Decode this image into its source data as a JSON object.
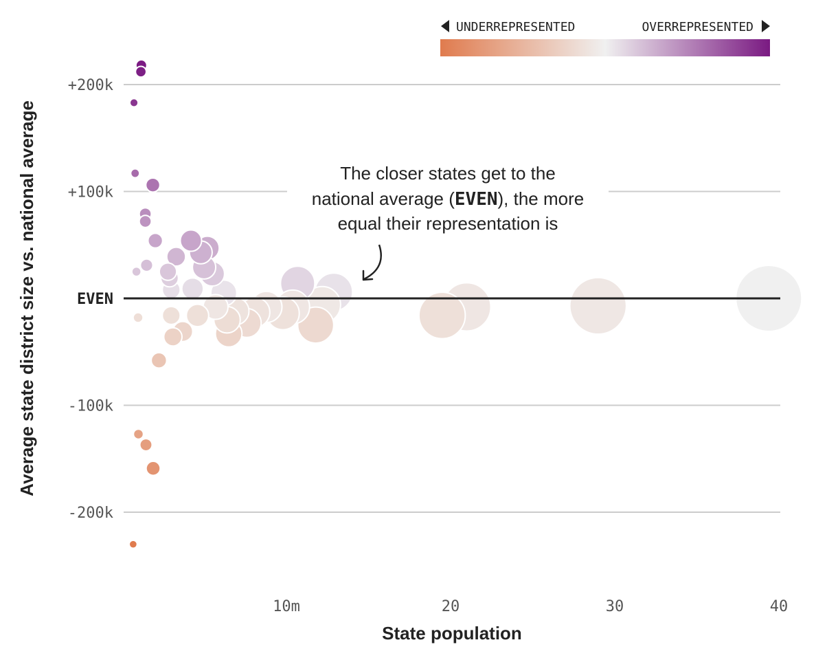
{
  "chart_data": {
    "type": "scatter",
    "title": "",
    "xlabel": "State population",
    "ylabel": "Average state district size vs. national average",
    "xlim": [
      0,
      40000000
    ],
    "ylim": [
      -250000,
      230000
    ],
    "x_ticks": [
      {
        "value": 10000000,
        "label": "10m"
      },
      {
        "value": 20000000,
        "label": "20"
      },
      {
        "value": 30000000,
        "label": "30"
      },
      {
        "value": 40000000,
        "label": "40"
      }
    ],
    "y_ticks": [
      {
        "value": 200000,
        "label": "+200k"
      },
      {
        "value": 100000,
        "label": "+100k"
      },
      {
        "value": 0,
        "label": "EVEN"
      },
      {
        "value": -100000,
        "label": "-100k"
      },
      {
        "value": -200000,
        "label": "-200k"
      }
    ],
    "grid": true,
    "legend": {
      "under_label": "UNDERREPRESENTED",
      "over_label": "OVERREPRESENTED",
      "under_color": "#e07b4e",
      "neutral_color": "#f0f0f0",
      "over_color": "#7a1a82",
      "placement": "top-right"
    },
    "annotation": {
      "line1": "The closer states get to the",
      "line2_pre": "national average (",
      "line2_bold": "EVEN",
      "line2_post": "), the more",
      "line3": "equal their representation is"
    },
    "points": [
      {
        "x": 580000,
        "y": -230000
      },
      {
        "x": 630000,
        "y": 183000
      },
      {
        "x": 700000,
        "y": 117000
      },
      {
        "x": 780000,
        "y": 25000
      },
      {
        "x": 880000,
        "y": -18000
      },
      {
        "x": 900000,
        "y": -127000
      },
      {
        "x": 1050000,
        "y": 212000
      },
      {
        "x": 1080000,
        "y": 218000
      },
      {
        "x": 1360000,
        "y": -137000
      },
      {
        "x": 1320000,
        "y": 79000
      },
      {
        "x": 1320000,
        "y": 72000
      },
      {
        "x": 1400000,
        "y": 31000
      },
      {
        "x": 1780000,
        "y": 106000
      },
      {
        "x": 1800000,
        "y": -159000
      },
      {
        "x": 1930000,
        "y": 54000
      },
      {
        "x": 2150000,
        "y": -58000
      },
      {
        "x": 2700000,
        "y": 25000
      },
      {
        "x": 2800000,
        "y": 19000
      },
      {
        "x": 2900000,
        "y": 8000
      },
      {
        "x": 2900000,
        "y": -16000
      },
      {
        "x": 3000000,
        "y": -36000
      },
      {
        "x": 3200000,
        "y": 39000
      },
      {
        "x": 3600000,
        "y": -31000
      },
      {
        "x": 4100000,
        "y": 54000
      },
      {
        "x": 4200000,
        "y": 9000
      },
      {
        "x": 4500000,
        "y": -16000
      },
      {
        "x": 4700000,
        "y": 43000
      },
      {
        "x": 4900000,
        "y": 29000
      },
      {
        "x": 5100000,
        "y": 47000
      },
      {
        "x": 5400000,
        "y": 23000
      },
      {
        "x": 5600000,
        "y": -8000
      },
      {
        "x": 6100000,
        "y": 5000
      },
      {
        "x": 6300000,
        "y": -20000
      },
      {
        "x": 6400000,
        "y": -33000
      },
      {
        "x": 6800000,
        "y": -12000
      },
      {
        "x": 7500000,
        "y": -23000
      },
      {
        "x": 8000000,
        "y": -13000
      },
      {
        "x": 8700000,
        "y": -8000
      },
      {
        "x": 9700000,
        "y": -14000
      },
      {
        "x": 10300000,
        "y": -8000
      },
      {
        "x": 10600000,
        "y": 14000
      },
      {
        "x": 11700000,
        "y": -25000
      },
      {
        "x": 12100000,
        "y": -6000
      },
      {
        "x": 12800000,
        "y": 6000
      },
      {
        "x": 19400000,
        "y": -16000
      },
      {
        "x": 20900000,
        "y": -8000
      },
      {
        "x": 28900000,
        "y": -7000
      },
      {
        "x": 39300000,
        "y": 0
      }
    ]
  }
}
